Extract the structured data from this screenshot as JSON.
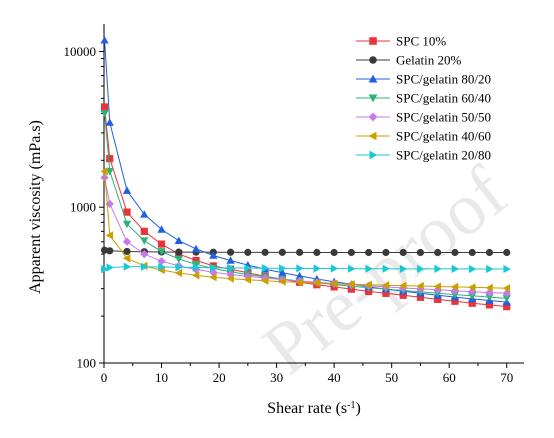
{
  "chart_data": {
    "type": "line",
    "xlabel": "Shear rate (s",
    "xlabel_superscript": "-1",
    "xlabel_suffix": ")",
    "ylabel": "Apparent viscosity (mPa.s)",
    "xlim": [
      0,
      73
    ],
    "ylim": [
      100,
      15000
    ],
    "y_scale": "log",
    "x_ticks": [
      0,
      10,
      20,
      30,
      40,
      50,
      60,
      70
    ],
    "y_ticks": [
      100,
      1000,
      10000
    ],
    "grid": false,
    "legend_position": "top-right",
    "watermark": "Pre-proof",
    "series": [
      {
        "name": "SPC 10%",
        "color": "#e8343a",
        "marker": "square",
        "x": [
          0.1,
          1,
          4,
          7,
          10,
          13,
          16,
          19,
          22,
          25,
          28,
          31,
          34,
          37,
          40,
          43,
          46,
          49,
          52,
          55,
          58,
          61,
          64,
          67,
          70
        ],
        "y": [
          4400,
          2050,
          930,
          700,
          580,
          500,
          455,
          420,
          400,
          380,
          360,
          345,
          330,
          318,
          308,
          298,
          288,
          280,
          272,
          264,
          256,
          249,
          242,
          236,
          230
        ]
      },
      {
        "name": "Gelatin 20%",
        "color": "#3a3a3a",
        "marker": "circle",
        "x": [
          0.1,
          1,
          4,
          7,
          10,
          13,
          16,
          19,
          22,
          25,
          28,
          31,
          34,
          37,
          40,
          43,
          46,
          49,
          52,
          55,
          58,
          61,
          64,
          67,
          70
        ],
        "y": [
          530,
          525,
          520,
          518,
          516,
          515,
          515,
          514,
          514,
          513,
          513,
          513,
          513,
          512,
          512,
          512,
          512,
          512,
          512,
          512,
          512,
          512,
          512,
          512,
          512
        ]
      },
      {
        "name": "SPC/gelatin 80/20",
        "color": "#1f5fe0",
        "marker": "triangle-up",
        "x": [
          0.1,
          1,
          4,
          7,
          10,
          13,
          16,
          19,
          22,
          25,
          28,
          31,
          34,
          37,
          40,
          43,
          46,
          49,
          52,
          55,
          58,
          61,
          64,
          67,
          70
        ],
        "y": [
          11800,
          3500,
          1280,
          900,
          720,
          610,
          540,
          490,
          455,
          425,
          400,
          380,
          362,
          346,
          332,
          320,
          308,
          298,
          289,
          280,
          272,
          265,
          258,
          252,
          246
        ]
      },
      {
        "name": "SPC/gelatin 60/40",
        "color": "#2bb37a",
        "marker": "triangle-down",
        "x": [
          0.1,
          1,
          4,
          7,
          10,
          13,
          16,
          19,
          22,
          25,
          28,
          31,
          34,
          37,
          40,
          43,
          46,
          49,
          52,
          55,
          58,
          61,
          64,
          67,
          70
        ],
        "y": [
          4000,
          1700,
          780,
          610,
          520,
          465,
          430,
          405,
          385,
          370,
          357,
          346,
          336,
          327,
          319,
          311,
          304,
          298,
          292,
          286,
          280,
          275,
          270,
          265,
          260
        ]
      },
      {
        "name": "SPC/gelatin 50/50",
        "color": "#c679e8",
        "marker": "diamond",
        "x": [
          0.1,
          1,
          4,
          7,
          10,
          13,
          16,
          19,
          22,
          25,
          28,
          31,
          34,
          37,
          40,
          43,
          46,
          49,
          52,
          55,
          58,
          61,
          64,
          67,
          70
        ],
        "y": [
          1550,
          1050,
          600,
          500,
          450,
          420,
          398,
          382,
          370,
          360,
          351,
          343,
          336,
          330,
          324,
          318,
          313,
          308,
          303,
          299,
          295,
          291,
          287,
          283,
          280
        ]
      },
      {
        "name": "SPC/gelatin 40/60",
        "color": "#c9a000",
        "marker": "triangle-left",
        "x": [
          0.1,
          1,
          4,
          7,
          10,
          13,
          16,
          19,
          22,
          25,
          28,
          31,
          34,
          37,
          40,
          43,
          46,
          49,
          52,
          55,
          58,
          61,
          64,
          67,
          70
        ],
        "y": [
          1700,
          660,
          470,
          420,
          395,
          378,
          365,
          355,
          348,
          342,
          337,
          333,
          329,
          326,
          323,
          320,
          318,
          316,
          314,
          312,
          310,
          308,
          306,
          304,
          302
        ]
      },
      {
        "name": "SPC/gelatin 20/80",
        "color": "#16c9d6",
        "marker": "triangle-right",
        "x": [
          0.1,
          1,
          4,
          7,
          10,
          13,
          16,
          19,
          22,
          25,
          28,
          31,
          34,
          37,
          40,
          43,
          46,
          49,
          52,
          55,
          58,
          61,
          64,
          67,
          70
        ],
        "y": [
          400,
          410,
          415,
          415,
          413,
          412,
          410,
          409,
          408,
          407,
          406,
          405,
          405,
          404,
          404,
          403,
          403,
          403,
          402,
          402,
          402,
          402,
          401,
          401,
          401
        ]
      }
    ]
  }
}
